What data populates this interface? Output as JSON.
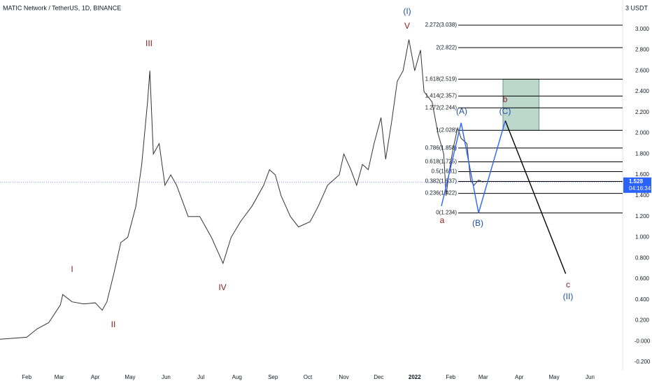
{
  "chart_data": {
    "type": "line",
    "title": "MATIC Network / TetherUS, 1D, BINANCE",
    "currency": "3 USDT",
    "color": "#333333",
    "x": [
      8,
      20,
      31,
      40,
      50,
      60,
      62,
      70,
      80,
      90,
      96,
      100,
      106,
      112,
      118,
      125,
      130,
      135,
      137,
      140,
      145,
      150,
      155,
      160,
      170,
      180,
      190,
      196,
      200,
      207,
      215,
      225,
      235,
      240,
      245,
      250,
      258,
      265,
      275,
      282,
      290,
      300,
      304,
      310,
      315,
      320,
      325,
      330,
      336,
      340,
      345,
      350,
      355,
      360,
      365,
      370,
      373,
      380,
      385,
      390,
      392,
      395,
      398,
      402,
      405,
      410,
      413,
      416,
      420,
      424
    ],
    "values": [
      0.02,
      0.03,
      0.04,
      0.12,
      0.18,
      0.35,
      0.45,
      0.38,
      0.36,
      0.37,
      0.3,
      0.38,
      0.65,
      0.95,
      1.0,
      1.3,
      1.7,
      2.3,
      2.6,
      1.8,
      1.9,
      1.5,
      1.6,
      1.5,
      1.2,
      1.2,
      1.0,
      0.85,
      0.75,
      1.0,
      1.15,
      1.3,
      1.5,
      1.65,
      1.6,
      1.4,
      1.2,
      1.1,
      1.15,
      1.3,
      1.5,
      1.6,
      1.8,
      1.65,
      1.5,
      1.7,
      1.65,
      1.9,
      2.15,
      1.75,
      2.1,
      2.5,
      2.6,
      2.9,
      2.6,
      2.8,
      2.4,
      2.3,
      2.0,
      1.8,
      1.4,
      1.65,
      1.85,
      2.05,
      1.95,
      1.9,
      1.55,
      1.5,
      1.55,
      1.53
    ],
    "xlim": [
      8,
      544
    ],
    "xticks": [
      {
        "value": 31,
        "label": "Feb"
      },
      {
        "value": 59,
        "label": "Mar"
      },
      {
        "value": 90,
        "label": "Apr"
      },
      {
        "value": 120,
        "label": "May"
      },
      {
        "value": 151,
        "label": "Jun"
      },
      {
        "value": 181,
        "label": "Jul"
      },
      {
        "value": 212,
        "label": "Aug"
      },
      {
        "value": 243,
        "label": "Sep"
      },
      {
        "value": 273,
        "label": "Oct"
      },
      {
        "value": 304,
        "label": "Nov"
      },
      {
        "value": 334,
        "label": "Dec"
      },
      {
        "value": 365,
        "label": "2022"
      },
      {
        "value": 396,
        "label": "Feb"
      },
      {
        "value": 424,
        "label": "Mar"
      },
      {
        "value": 455,
        "label": "Apr"
      },
      {
        "value": 485,
        "label": "May"
      },
      {
        "value": 516,
        "label": "Jun"
      }
    ],
    "ylim": [
      -0.28,
      3.28
    ],
    "yticks": [
      {
        "value": 3,
        "label": "3.000"
      },
      {
        "value": 2.8,
        "label": "2.800"
      },
      {
        "value": 2.6,
        "label": "2.600"
      },
      {
        "value": 2.4,
        "label": "2.400"
      },
      {
        "value": 2.2,
        "label": "2.200"
      },
      {
        "value": 2,
        "label": "2.000"
      },
      {
        "value": 1.8,
        "label": "1.800"
      },
      {
        "value": 1.6,
        "label": "1.600"
      },
      {
        "value": 1.4,
        "label": "1.400"
      },
      {
        "value": 1.2,
        "label": "1.200"
      },
      {
        "value": 1,
        "label": "1.000"
      },
      {
        "value": 0.8,
        "label": "0.800"
      },
      {
        "value": 0.6,
        "label": "0.600"
      },
      {
        "value": 0.4,
        "label": "0.400"
      },
      {
        "value": 0.2,
        "label": "0.200"
      },
      {
        "value": 0,
        "label": "-0.000"
      },
      {
        "value": -0.2,
        "label": "-0.200"
      }
    ],
    "fib_levels": [
      {
        "label": "2.272(3.038)",
        "value": 3.038
      },
      {
        "label": "2(2.822)",
        "value": 2.822
      },
      {
        "label": "1.618(2.519)",
        "value": 2.519
      },
      {
        "label": "1.414(2.357)",
        "value": 2.357
      },
      {
        "label": "1.272(2.244)",
        "value": 2.244
      },
      {
        "label": "1(2.028)",
        "value": 2.028
      },
      {
        "label": "0.786(1.858)",
        "value": 1.858
      },
      {
        "label": "0.618(1.725)",
        "value": 1.725
      },
      {
        "label": "0.5(1.631)",
        "value": 1.631
      },
      {
        "label": "0.382(1.537)",
        "value": 1.537
      },
      {
        "label": "0.236(1.422)",
        "value": 1.422
      },
      {
        "label": "0(1.234)",
        "value": 1.234
      }
    ],
    "wave_path": {
      "x": [
        388,
        405,
        420,
        443
      ],
      "values": [
        1.3,
        2.1,
        1.234,
        2.12
      ],
      "color": "#2962ff"
    },
    "target_path": {
      "x": [
        443,
        495
      ],
      "values": [
        2.12,
        0.65
      ],
      "color": "#000000"
    },
    "zone": {
      "x": [
        441,
        472
      ],
      "values": [
        2.028,
        2.519
      ],
      "color": "#8fbcaa"
    },
    "wave_labels": [
      {
        "text": "(I)",
        "color": "#1e4fa3"
      },
      {
        "text": "V",
        "color": "#8b1a1a"
      },
      {
        "text": "III",
        "color": "#8b1a1a"
      },
      {
        "text": "I",
        "color": "#8b1a1a"
      },
      {
        "text": "II",
        "color": "#8b1a1a"
      },
      {
        "text": "IV",
        "color": "#8b1a1a"
      },
      {
        "text": "a",
        "color": "#8b1a1a"
      },
      {
        "text": "b",
        "color": "#8b1a1a"
      },
      {
        "text": "(A)",
        "color": "#1e4fa3"
      },
      {
        "text": "(C)",
        "color": "#1e4fa3"
      },
      {
        "text": "(B)",
        "color": "#1e4fa3"
      },
      {
        "text": "c",
        "color": "#8b1a1a"
      },
      {
        "text": "(II)",
        "color": "#1e4fa3"
      }
    ],
    "last_price": {
      "value": 1.528,
      "label": "1.528",
      "countdown": "04:16:34",
      "color": "#2962ff"
    }
  }
}
